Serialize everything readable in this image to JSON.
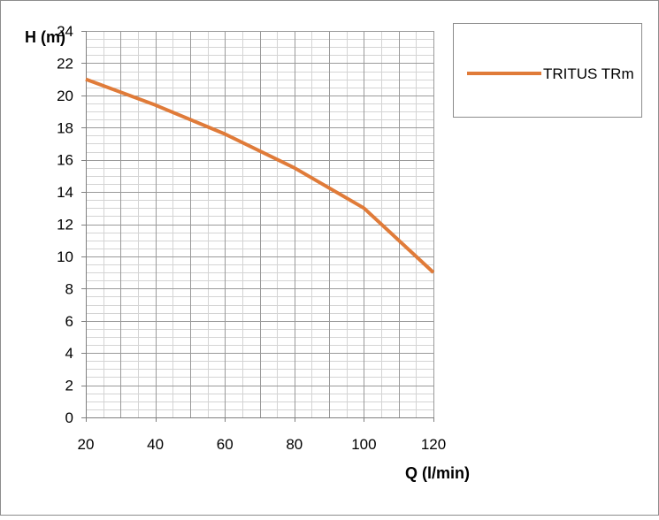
{
  "chart_data": {
    "type": "line",
    "title": "",
    "xlabel": "Q (l/min)",
    "ylabel": "H (m)",
    "xlim": [
      20,
      120
    ],
    "ylim": [
      0,
      24
    ],
    "x_ticks": [
      "20",
      "40",
      "60",
      "80",
      "100",
      "120"
    ],
    "y_ticks": [
      "0",
      "2",
      "4",
      "6",
      "8",
      "10",
      "12",
      "14",
      "16",
      "18",
      "20",
      "22",
      "24"
    ],
    "grid": true,
    "legend_position": "right",
    "series": [
      {
        "name": "TRITUS TRm",
        "color": "#E07B39",
        "x": [
          20,
          40,
          60,
          80,
          100,
          120
        ],
        "y": [
          21,
          19.4,
          17.6,
          15.5,
          13,
          9
        ]
      }
    ]
  }
}
